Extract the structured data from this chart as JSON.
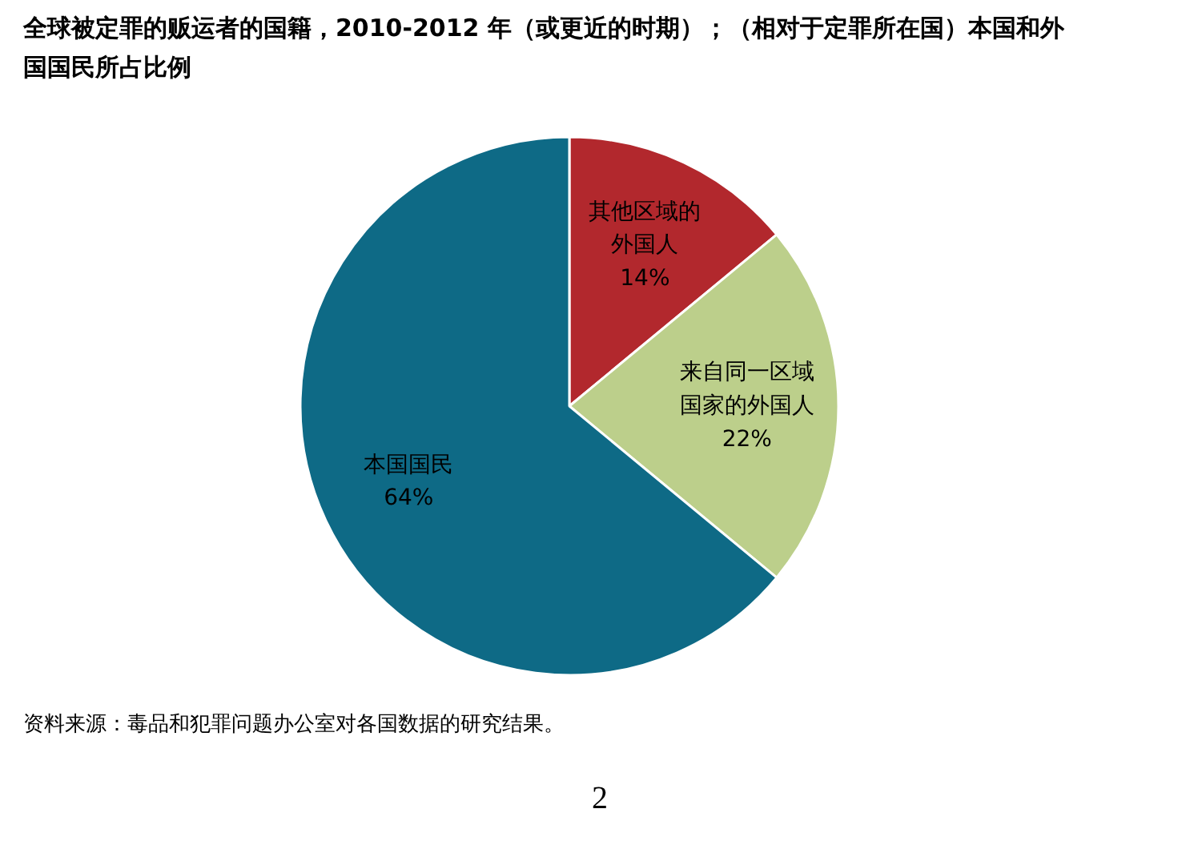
{
  "chart_data": {
    "type": "pie",
    "title": "全球被定罪的贩运者的国籍，2010-2012 年（或更近的时期）；（相对于定罪所在国）本国和外国国民所占比例",
    "categories": [
      "其他区域的外国人",
      "来自同一区域国家的外国人",
      "本国国民"
    ],
    "values": [
      14,
      22,
      64
    ],
    "value_labels": [
      "14%",
      "22%",
      "64%"
    ],
    "colors": [
      "#b2282d",
      "#bccf8b",
      "#0e6a86"
    ],
    "annotations": [
      "资料来源：毒品和犯罪问题办公室对各国数据的研究结果。",
      "2"
    ]
  }
}
